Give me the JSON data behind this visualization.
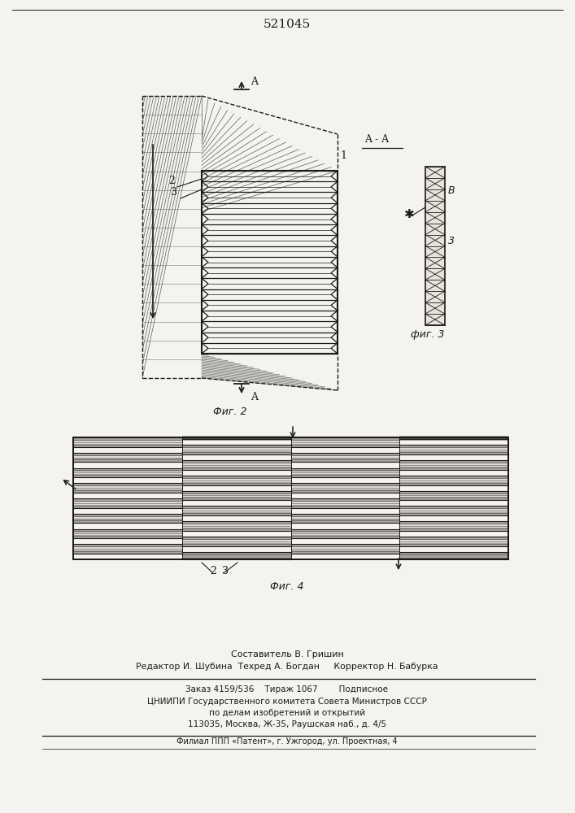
{
  "title": "521045",
  "bg_color": "#f5f3ef",
  "lc": "#1a1a1a",
  "fig2_label": "Фиг. 2",
  "fig3_label": "фиг. 3",
  "fig4_label": "Фиг. 4",
  "footer_composer": "Составитель В. Гришин",
  "footer_editor": "Редактор И. Шубина  Техред А. Богдан     Корректор Н. Бабурка",
  "footer_order": "Заказ 4159/536    Тираж 1067        Подписное",
  "footer_institute": "ЦНИИПИ Государственного комитета Совета Министров СССР",
  "footer_dept": "по делам изобретений и открытий",
  "footer_address": "113035, Москва, Ж-35, Раушская наб., д. 4/5",
  "footer_branch": "Филиал ППП «Патент», г. Ужгород, ул. Проектная, 4"
}
